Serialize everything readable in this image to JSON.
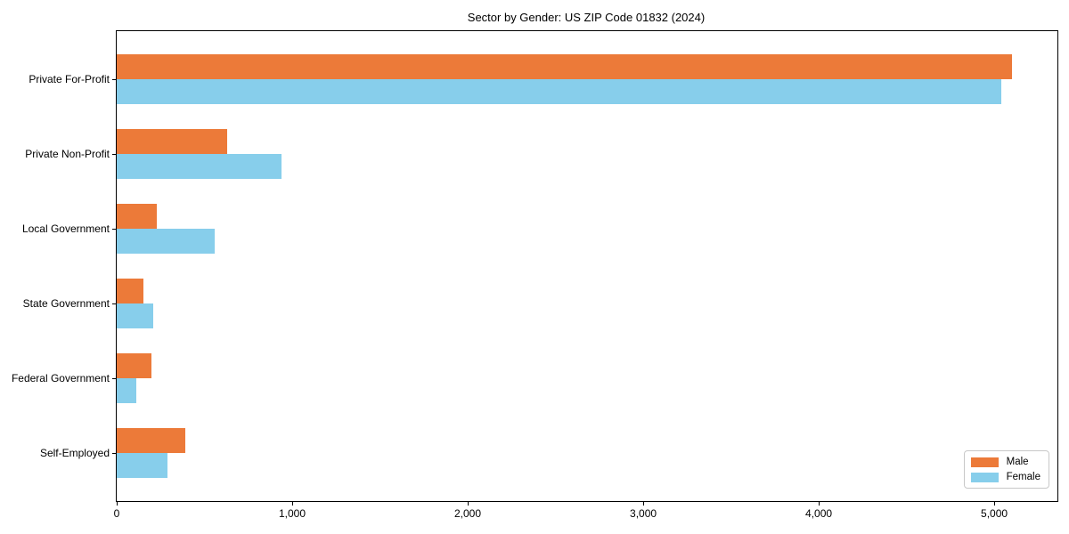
{
  "chart_data": {
    "type": "bar",
    "orientation": "horizontal",
    "title": "Sector by Gender: US ZIP Code 01832 (2024)",
    "categories": [
      "Private For-Profit",
      "Private Non-Profit",
      "Local Government",
      "State Government",
      "Federal Government",
      "Self-Employed"
    ],
    "series": [
      {
        "name": "Male",
        "color": "#EC7A39",
        "values": [
          5100,
          630,
          230,
          150,
          200,
          390
        ]
      },
      {
        "name": "Female",
        "color": "#87CEEB",
        "values": [
          5040,
          940,
          560,
          210,
          110,
          290
        ]
      }
    ],
    "xlim": [
      0,
      5360
    ],
    "x_ticks": [
      0,
      1000,
      2000,
      3000,
      4000,
      5000
    ],
    "x_tick_labels": [
      "0",
      "1,000",
      "2,000",
      "3,000",
      "4,000",
      "5,000"
    ],
    "xlabel": "",
    "ylabel": "",
    "grid": false,
    "legend": {
      "position": "lower right",
      "entries": [
        "Male",
        "Female"
      ]
    }
  },
  "colors": {
    "male": "#EC7A39",
    "female": "#87CEEB",
    "axis": "#000000",
    "legend_border": "#c8c8c8",
    "background": "#ffffff"
  }
}
